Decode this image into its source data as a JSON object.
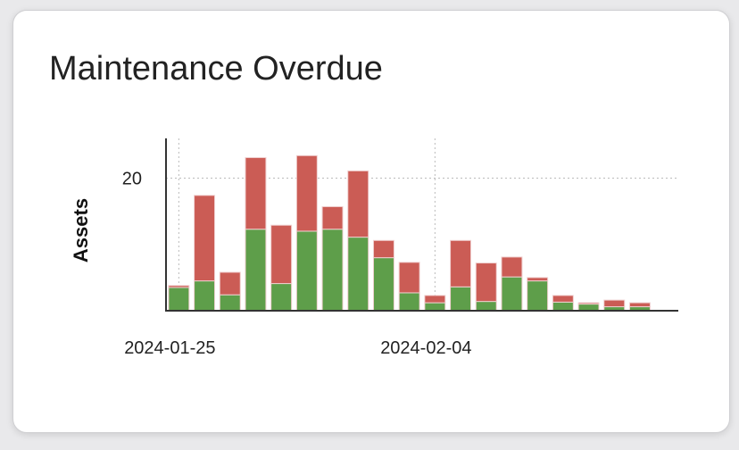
{
  "card": {
    "title": "Maintenance Overdue"
  },
  "chart_data": {
    "type": "bar",
    "stacked": true,
    "title": "Maintenance Overdue",
    "xlabel": "",
    "ylabel": "Assets",
    "x_type": "date",
    "xlim": [
      "2024-01-24T12:00",
      "2024-02-13T12:00"
    ],
    "ylim": [
      0,
      26
    ],
    "x_ticks": [
      "2024-01-25",
      "2024-02-04"
    ],
    "y_ticks": [
      20
    ],
    "grid": "dotted, at tick positions",
    "legend": "none",
    "categories": [
      "2024-01-25",
      "2024-01-26",
      "2024-01-27",
      "2024-01-28",
      "2024-01-29",
      "2024-01-30",
      "2024-01-31",
      "2024-02-01",
      "2024-02-02",
      "2024-02-03",
      "2024-02-04",
      "2024-02-05",
      "2024-02-06",
      "2024-02-07",
      "2024-02-08",
      "2024-02-09",
      "2024-02-10",
      "2024-02-11",
      "2024-02-12"
    ],
    "series": [
      {
        "color": "#5e9e4a",
        "values": [
          3.5,
          4.5,
          2.4,
          12.3,
          4.1,
          12.0,
          12.3,
          11.1,
          8.0,
          2.7,
          1.2,
          3.6,
          1.4,
          5.1,
          4.5,
          1.3,
          1.0,
          0.6,
          0.6
        ]
      },
      {
        "color": "#cb5c55",
        "values": [
          0.3,
          12.9,
          3.4,
          10.8,
          8.8,
          11.4,
          3.4,
          10.0,
          2.6,
          4.6,
          1.1,
          7.0,
          5.8,
          3.0,
          0.5,
          1.0,
          0.2,
          1.0,
          0.6
        ]
      }
    ]
  }
}
